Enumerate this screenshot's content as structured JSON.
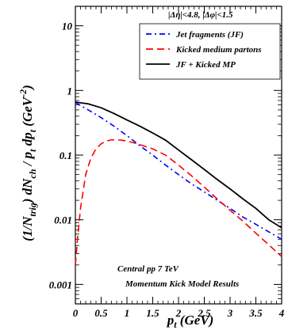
{
  "chart_data": {
    "type": "line",
    "xlabel": "p_t (GeV)",
    "ylabel": "(1/N_trig) dN_ch / p_t dp_t (GeV^-2)",
    "xlim": [
      0,
      4
    ],
    "ylim": [
      0.0005,
      20
    ],
    "yscale": "log",
    "grid": false,
    "x_ticks": [
      "0",
      "0.5",
      "1",
      "1.5",
      "2",
      "2.5",
      "3",
      "3.5",
      "4"
    ],
    "y_ticks": [
      "0.001",
      "0.01",
      "0.1",
      "1",
      "10"
    ],
    "legend": {
      "header": "|Δη|<4.8,   |Δφ|<1.5",
      "placement": "top-right"
    },
    "annotations": [
      "Central pp 7 TeV",
      "Momentum Kick Model Results"
    ],
    "series": [
      {
        "name": "Jet fragments (JF)",
        "color": "#0000ff",
        "style": "dashdot",
        "x": [
          0,
          0.25,
          0.5,
          0.75,
          1.0,
          1.25,
          1.5,
          1.75,
          2.0,
          2.25,
          2.5,
          2.75,
          3.0,
          3.25,
          3.5,
          3.75,
          4.0
        ],
        "y": [
          0.65,
          0.5,
          0.38,
          0.28,
          0.2,
          0.14,
          0.1,
          0.07,
          0.05,
          0.036,
          0.027,
          0.02,
          0.015,
          0.011,
          0.0085,
          0.0065,
          0.005
        ]
      },
      {
        "name": "Kicked medium partons",
        "color": "#ff0000",
        "style": "dashed",
        "x": [
          0,
          0.05,
          0.1,
          0.2,
          0.3,
          0.4,
          0.5,
          0.6,
          0.7,
          0.8,
          0.9,
          1.0,
          1.2,
          1.5,
          1.75,
          2.0,
          2.25,
          2.5,
          2.75,
          3.0,
          3.25,
          3.5,
          3.75,
          4.0
        ],
        "y": [
          0.002,
          0.006,
          0.015,
          0.05,
          0.09,
          0.125,
          0.15,
          0.165,
          0.172,
          0.173,
          0.17,
          0.165,
          0.15,
          0.125,
          0.1,
          0.07,
          0.048,
          0.032,
          0.021,
          0.014,
          0.0095,
          0.0062,
          0.0041,
          0.0027
        ]
      },
      {
        "name": "JF + Kicked MP",
        "color": "#000000",
        "style": "solid",
        "x": [
          0,
          0.25,
          0.5,
          0.75,
          1.0,
          1.25,
          1.5,
          1.75,
          2.0,
          2.25,
          2.5,
          2.75,
          3.0,
          3.25,
          3.5,
          3.75,
          4.0
        ],
        "y": [
          0.66,
          0.62,
          0.54,
          0.44,
          0.35,
          0.28,
          0.22,
          0.17,
          0.12,
          0.085,
          0.06,
          0.042,
          0.03,
          0.021,
          0.015,
          0.01,
          0.0075
        ]
      }
    ]
  }
}
